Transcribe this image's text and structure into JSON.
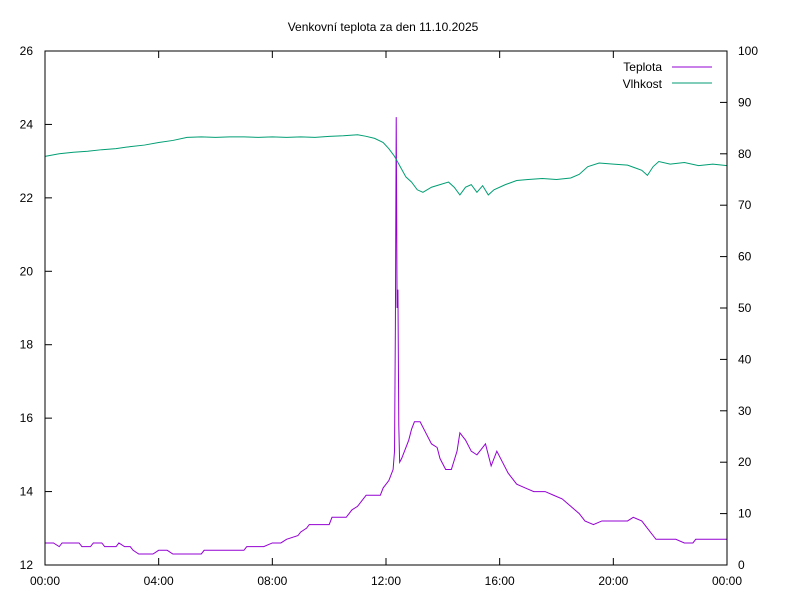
{
  "chart_data": {
    "type": "line",
    "title": "Venkovní teplota za den 11.10.2025",
    "grid": false,
    "legend_position": "top-right",
    "x_axis": {
      "unit": "hours",
      "range": [
        0,
        24
      ],
      "ticks": [
        0,
        4,
        8,
        12,
        16,
        20,
        24
      ],
      "tick_labels": [
        "00:00",
        "04:00",
        "08:00",
        "12:00",
        "16:00",
        "20:00",
        "00:00"
      ]
    },
    "y_axis_left": {
      "range": [
        12,
        26
      ],
      "ticks": [
        12,
        14,
        16,
        18,
        20,
        22,
        24,
        26
      ],
      "tick_labels": [
        "12",
        "14",
        "16",
        "18",
        "20",
        "22",
        "24",
        "26"
      ]
    },
    "y_axis_right": {
      "range": [
        0,
        100
      ],
      "ticks": [
        0,
        10,
        20,
        30,
        40,
        50,
        60,
        70,
        80,
        90,
        100
      ],
      "tick_labels": [
        "0",
        "10",
        "20",
        "30",
        "40",
        "50",
        "60",
        "70",
        "80",
        "90",
        "100"
      ]
    },
    "series": [
      {
        "name": "Teplota",
        "axis": "left",
        "color": "#9400d3",
        "points": [
          [
            0.0,
            12.6
          ],
          [
            0.3,
            12.6
          ],
          [
            0.5,
            12.5
          ],
          [
            0.6,
            12.6
          ],
          [
            1.2,
            12.6
          ],
          [
            1.3,
            12.5
          ],
          [
            1.6,
            12.5
          ],
          [
            1.7,
            12.6
          ],
          [
            2.0,
            12.6
          ],
          [
            2.1,
            12.5
          ],
          [
            2.5,
            12.5
          ],
          [
            2.6,
            12.6
          ],
          [
            2.8,
            12.5
          ],
          [
            3.0,
            12.5
          ],
          [
            3.1,
            12.4
          ],
          [
            3.3,
            12.3
          ],
          [
            3.8,
            12.3
          ],
          [
            4.0,
            12.4
          ],
          [
            4.3,
            12.4
          ],
          [
            4.5,
            12.3
          ],
          [
            5.5,
            12.3
          ],
          [
            5.6,
            12.4
          ],
          [
            7.0,
            12.4
          ],
          [
            7.1,
            12.5
          ],
          [
            7.7,
            12.5
          ],
          [
            8.0,
            12.6
          ],
          [
            8.3,
            12.6
          ],
          [
            8.5,
            12.7
          ],
          [
            8.9,
            12.8
          ],
          [
            9.0,
            12.9
          ],
          [
            9.2,
            13.0
          ],
          [
            9.3,
            13.1
          ],
          [
            10.0,
            13.1
          ],
          [
            10.1,
            13.3
          ],
          [
            10.6,
            13.3
          ],
          [
            10.8,
            13.5
          ],
          [
            11.0,
            13.6
          ],
          [
            11.2,
            13.8
          ],
          [
            11.3,
            13.9
          ],
          [
            11.8,
            13.9
          ],
          [
            11.9,
            14.1
          ],
          [
            12.1,
            14.3
          ],
          [
            12.25,
            14.6
          ],
          [
            12.3,
            15.1
          ],
          [
            12.33,
            18.5
          ],
          [
            12.36,
            24.2
          ],
          [
            12.39,
            19.0
          ],
          [
            12.42,
            19.5
          ],
          [
            12.45,
            15.8
          ],
          [
            12.48,
            14.8
          ],
          [
            12.55,
            14.9
          ],
          [
            12.7,
            15.2
          ],
          [
            12.8,
            15.4
          ],
          [
            12.9,
            15.7
          ],
          [
            13.0,
            15.9
          ],
          [
            13.2,
            15.9
          ],
          [
            13.4,
            15.6
          ],
          [
            13.6,
            15.3
          ],
          [
            13.8,
            15.2
          ],
          [
            13.9,
            14.9
          ],
          [
            14.1,
            14.6
          ],
          [
            14.3,
            14.6
          ],
          [
            14.5,
            15.1
          ],
          [
            14.6,
            15.6
          ],
          [
            14.8,
            15.4
          ],
          [
            15.0,
            15.1
          ],
          [
            15.2,
            15.0
          ],
          [
            15.4,
            15.2
          ],
          [
            15.5,
            15.3
          ],
          [
            15.7,
            14.7
          ],
          [
            15.9,
            15.1
          ],
          [
            16.1,
            14.8
          ],
          [
            16.3,
            14.5
          ],
          [
            16.6,
            14.2
          ],
          [
            16.9,
            14.1
          ],
          [
            17.2,
            14.0
          ],
          [
            17.6,
            14.0
          ],
          [
            17.9,
            13.9
          ],
          [
            18.2,
            13.8
          ],
          [
            18.5,
            13.6
          ],
          [
            18.8,
            13.4
          ],
          [
            19.0,
            13.2
          ],
          [
            19.3,
            13.1
          ],
          [
            19.6,
            13.2
          ],
          [
            20.0,
            13.2
          ],
          [
            20.5,
            13.2
          ],
          [
            20.7,
            13.3
          ],
          [
            21.0,
            13.2
          ],
          [
            21.2,
            13.0
          ],
          [
            21.4,
            12.8
          ],
          [
            21.5,
            12.7
          ],
          [
            22.0,
            12.7
          ],
          [
            22.2,
            12.7
          ],
          [
            22.5,
            12.6
          ],
          [
            22.8,
            12.6
          ],
          [
            22.9,
            12.7
          ],
          [
            23.5,
            12.7
          ],
          [
            24.0,
            12.7
          ]
        ]
      },
      {
        "name": "Vlhkost",
        "axis": "right",
        "color": "#009e73",
        "points": [
          [
            0.0,
            79.5
          ],
          [
            0.5,
            80.0
          ],
          [
            1.0,
            80.3
          ],
          [
            1.5,
            80.5
          ],
          [
            2.0,
            80.8
          ],
          [
            2.5,
            81.0
          ],
          [
            3.0,
            81.4
          ],
          [
            3.5,
            81.7
          ],
          [
            4.0,
            82.2
          ],
          [
            4.5,
            82.6
          ],
          [
            5.0,
            83.2
          ],
          [
            5.5,
            83.3
          ],
          [
            6.0,
            83.2
          ],
          [
            6.5,
            83.3
          ],
          [
            7.0,
            83.3
          ],
          [
            7.5,
            83.2
          ],
          [
            8.0,
            83.3
          ],
          [
            8.5,
            83.2
          ],
          [
            9.0,
            83.3
          ],
          [
            9.5,
            83.2
          ],
          [
            10.0,
            83.4
          ],
          [
            10.5,
            83.5
          ],
          [
            11.0,
            83.7
          ],
          [
            11.3,
            83.4
          ],
          [
            11.6,
            83.0
          ],
          [
            11.9,
            82.2
          ],
          [
            12.1,
            81.0
          ],
          [
            12.3,
            79.5
          ],
          [
            12.5,
            77.5
          ],
          [
            12.7,
            75.5
          ],
          [
            12.9,
            74.5
          ],
          [
            13.1,
            73.0
          ],
          [
            13.3,
            72.5
          ],
          [
            13.6,
            73.5
          ],
          [
            13.9,
            74.0
          ],
          [
            14.2,
            74.5
          ],
          [
            14.4,
            73.5
          ],
          [
            14.6,
            72.0
          ],
          [
            14.8,
            73.5
          ],
          [
            15.0,
            74.0
          ],
          [
            15.2,
            72.5
          ],
          [
            15.4,
            73.8
          ],
          [
            15.6,
            72.0
          ],
          [
            15.8,
            73.0
          ],
          [
            16.2,
            74.0
          ],
          [
            16.6,
            74.8
          ],
          [
            17.0,
            75.0
          ],
          [
            17.5,
            75.2
          ],
          [
            18.0,
            75.0
          ],
          [
            18.5,
            75.3
          ],
          [
            18.8,
            76.0
          ],
          [
            19.1,
            77.5
          ],
          [
            19.5,
            78.2
          ],
          [
            20.0,
            78.0
          ],
          [
            20.5,
            77.8
          ],
          [
            21.0,
            76.8
          ],
          [
            21.2,
            75.8
          ],
          [
            21.4,
            77.5
          ],
          [
            21.6,
            78.5
          ],
          [
            22.0,
            78.0
          ],
          [
            22.5,
            78.3
          ],
          [
            23.0,
            77.7
          ],
          [
            23.5,
            78.0
          ],
          [
            24.0,
            77.7
          ]
        ]
      }
    ]
  }
}
